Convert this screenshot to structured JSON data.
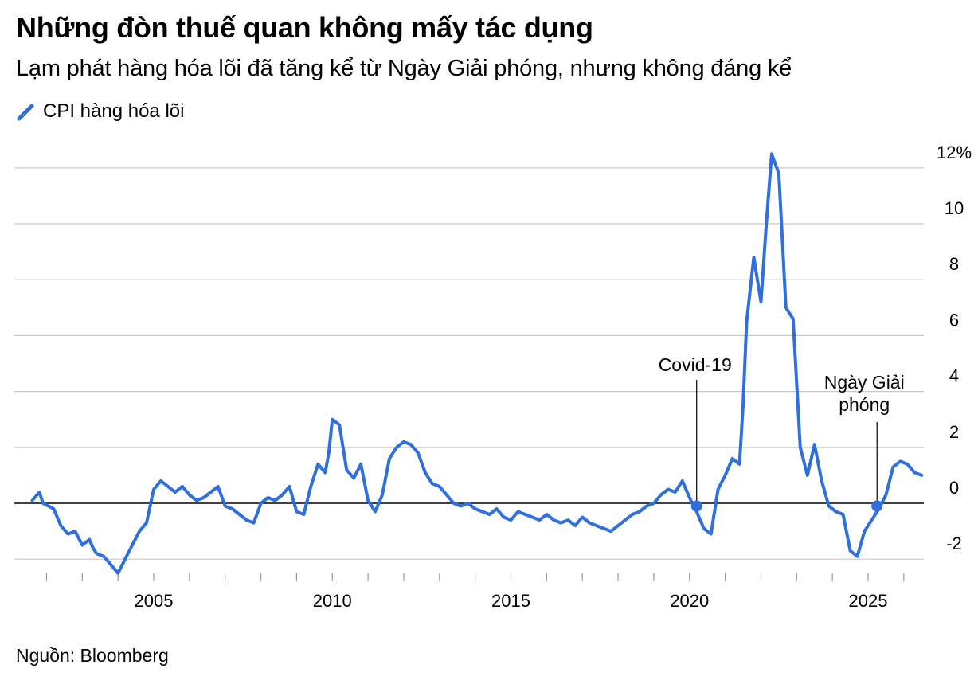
{
  "title": "Những đòn thuế quan không mấy tác dụng",
  "subtitle": "Lạm phát hàng hóa lõi đã tăng kể từ Ngày Giải phóng, nhưng không đáng kể",
  "source": "Nguồn: Bloomberg",
  "chart_data": {
    "type": "line",
    "title": "Những đòn thuế quan không mấy tác dụng",
    "subtitle": "Lạm phát hàng hóa lõi đã tăng kể từ Ngày Giải phóng, nhưng không đáng kể",
    "xlabel": "",
    "ylabel": "",
    "xlim": [
      2001.4,
      2026.6
    ],
    "ylim": [
      -2.6,
      12.6
    ],
    "y_ticks": [
      -2,
      0,
      2,
      4,
      6,
      8,
      10,
      12
    ],
    "y_tick_labels": [
      "-2",
      "0",
      "2",
      "4",
      "6",
      "8",
      "10",
      "12%"
    ],
    "x_ticks": [
      2005,
      2010,
      2015,
      2020,
      2025
    ],
    "x_tick_labels": [
      "2005",
      "2010",
      "2015",
      "2020",
      "2025"
    ],
    "grid": true,
    "legend_position": "top-left",
    "color": "#2f6fde",
    "series": [
      {
        "name": "CPI hàng hóa lõi",
        "x": [
          2001.6,
          2001.8,
          2001.9,
          2002.2,
          2002.4,
          2002.6,
          2002.8,
          2003.0,
          2003.2,
          2003.3,
          2003.4,
          2003.6,
          2003.8,
          2004.0,
          2004.2,
          2004.4,
          2004.6,
          2004.8,
          2005.0,
          2005.2,
          2005.4,
          2005.6,
          2005.8,
          2006.0,
          2006.2,
          2006.4,
          2006.6,
          2006.8,
          2007.0,
          2007.2,
          2007.4,
          2007.6,
          2007.8,
          2008.0,
          2008.2,
          2008.4,
          2008.6,
          2008.8,
          2009.0,
          2009.2,
          2009.4,
          2009.6,
          2009.8,
          2009.9,
          2010.0,
          2010.2,
          2010.4,
          2010.6,
          2010.8,
          2011.0,
          2011.2,
          2011.4,
          2011.6,
          2011.8,
          2012.0,
          2012.2,
          2012.4,
          2012.6,
          2012.8,
          2013.0,
          2013.2,
          2013.4,
          2013.6,
          2013.8,
          2014.0,
          2014.2,
          2014.4,
          2014.6,
          2014.8,
          2015.0,
          2015.2,
          2015.4,
          2015.6,
          2015.8,
          2016.0,
          2016.2,
          2016.4,
          2016.6,
          2016.8,
          2017.0,
          2017.2,
          2017.4,
          2017.6,
          2017.8,
          2018.0,
          2018.2,
          2018.4,
          2018.6,
          2018.8,
          2019.0,
          2019.2,
          2019.4,
          2019.6,
          2019.8,
          2020.0,
          2020.2,
          2020.4,
          2020.6,
          2020.8,
          2021.0,
          2021.2,
          2021.4,
          2021.5,
          2021.6,
          2021.8,
          2022.0,
          2022.15,
          2022.3,
          2022.5,
          2022.7,
          2022.9,
          2023.1,
          2023.3,
          2023.5,
          2023.7,
          2023.9,
          2024.1,
          2024.3,
          2024.5,
          2024.7,
          2024.9,
          2025.1,
          2025.3,
          2025.5,
          2025.7,
          2025.9,
          2026.1,
          2026.3,
          2026.5
        ],
        "values": [
          0.1,
          0.4,
          0.0,
          -0.2,
          -0.8,
          -1.1,
          -1.0,
          -1.5,
          -1.3,
          -1.6,
          -1.8,
          -1.9,
          -2.2,
          -2.5,
          -2.0,
          -1.5,
          -1.0,
          -0.7,
          0.5,
          0.8,
          0.6,
          0.4,
          0.6,
          0.3,
          0.1,
          0.2,
          0.4,
          0.6,
          -0.1,
          -0.2,
          -0.4,
          -0.6,
          -0.7,
          0.0,
          0.2,
          0.1,
          0.3,
          0.6,
          -0.3,
          -0.4,
          0.6,
          1.4,
          1.1,
          1.8,
          3.0,
          2.8,
          1.2,
          0.9,
          1.4,
          0.1,
          -0.3,
          0.3,
          1.6,
          2.0,
          2.2,
          2.1,
          1.8,
          1.1,
          0.7,
          0.6,
          0.3,
          0.0,
          -0.1,
          0.0,
          -0.2,
          -0.3,
          -0.4,
          -0.2,
          -0.5,
          -0.6,
          -0.3,
          -0.4,
          -0.5,
          -0.6,
          -0.4,
          -0.6,
          -0.7,
          -0.6,
          -0.8,
          -0.5,
          -0.7,
          -0.8,
          -0.9,
          -1.0,
          -0.8,
          -0.6,
          -0.4,
          -0.3,
          -0.1,
          0.0,
          0.3,
          0.5,
          0.4,
          0.8,
          0.2,
          -0.3,
          -0.9,
          -1.1,
          0.5,
          1.0,
          1.6,
          1.4,
          3.5,
          6.5,
          8.8,
          7.2,
          10.0,
          12.5,
          11.8,
          7.0,
          6.6,
          2.0,
          1.0,
          2.1,
          0.8,
          -0.1,
          -0.3,
          -0.4,
          -1.7,
          -1.9,
          -1.0,
          -0.6,
          -0.2,
          0.3,
          1.3,
          1.5,
          1.4,
          1.1,
          1.0
        ]
      }
    ],
    "markers": [
      {
        "x": 2020.2,
        "y": -0.1,
        "label": "Covid-19"
      },
      {
        "x": 2025.25,
        "y": -0.1,
        "label_lines": [
          "Ngày Giải",
          "phóng"
        ]
      }
    ]
  }
}
